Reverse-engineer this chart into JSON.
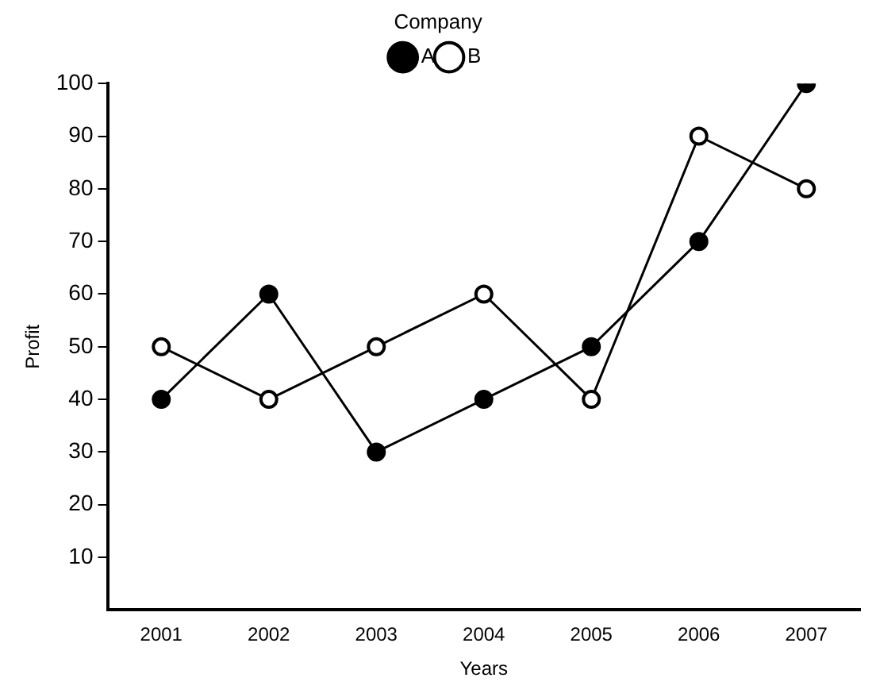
{
  "chart_data": {
    "type": "line",
    "xlabel": "Years",
    "ylabel": "Profit",
    "legend_title": "Company",
    "categories": [
      "2001",
      "2002",
      "2003",
      "2004",
      "2005",
      "2006",
      "2007"
    ],
    "series": [
      {
        "name": "A",
        "color": "#000000",
        "values": [
          40,
          60,
          30,
          40,
          50,
          70,
          100
        ]
      },
      {
        "name": "B",
        "color": "#000000",
        "values": [
          50,
          40,
          50,
          60,
          40,
          90,
          80
        ]
      }
    ],
    "ylim": [
      0,
      100
    ],
    "yticks": [
      10,
      20,
      30,
      40,
      50,
      60,
      70,
      80,
      90,
      100
    ],
    "grid": false,
    "legend": "top",
    "marker": "circle",
    "line_style": "solid"
  }
}
